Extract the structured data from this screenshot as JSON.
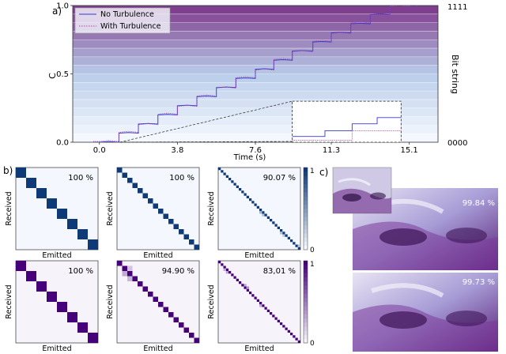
{
  "panel_labels": {
    "a": "a)",
    "b": "b)",
    "c": "c)"
  },
  "chart_data": [
    {
      "id": "panel-a",
      "type": "line",
      "title": "",
      "xlabel": "Time (s)",
      "ylabel": "C",
      "right_label": "Bit string",
      "xlim": [
        -1.3,
        16.5
      ],
      "ylim": [
        0,
        1
      ],
      "x_ticks": [
        0.0,
        3.8,
        7.6,
        11.3,
        15.1
      ],
      "x_tick_labels": [
        "0.0",
        "3.8",
        "7.6",
        "11.3",
        "15.1"
      ],
      "y_ticks": [
        0.0,
        0.5,
        1.0
      ],
      "y_tick_labels": [
        "0.0",
        "0.5",
        "1.0"
      ],
      "right_tick_labels": [
        "0000",
        "1111"
      ],
      "legend": {
        "placement": "top-left",
        "entries": [
          "No Turbulence",
          "With Turbulence"
        ]
      },
      "levels": 16,
      "series": [
        {
          "name": "No Turbulence",
          "color": "#3a3ad0",
          "style": "solid",
          "x": [
            0.0,
            0.95,
            1.9,
            2.85,
            3.8,
            4.75,
            5.7,
            6.65,
            7.6,
            8.5,
            9.4,
            10.4,
            11.3,
            12.25,
            13.2,
            14.15,
            15.1
          ],
          "values": [
            0.0,
            0.0667,
            0.1333,
            0.2,
            0.2667,
            0.3333,
            0.4,
            0.4667,
            0.5333,
            0.6,
            0.6667,
            0.7333,
            0.8,
            0.8667,
            0.9333,
            1.0,
            1.0
          ]
        },
        {
          "name": "With Turbulence",
          "color": "#b04a9c",
          "style": "dotted",
          "x": [
            0.0,
            0.95,
            1.9,
            2.85,
            3.8,
            4.75,
            5.7,
            6.65,
            7.6,
            8.5,
            9.4,
            10.4,
            11.3,
            12.25,
            13.2,
            14.15,
            15.1
          ],
          "values": [
            0.005,
            0.072,
            0.128,
            0.205,
            0.262,
            0.338,
            0.396,
            0.472,
            0.528,
            0.605,
            0.662,
            0.738,
            0.795,
            0.872,
            0.928,
            0.995,
            1.0
          ]
        }
      ],
      "inset": {
        "x_range": [
          9.4,
          14.7
        ],
        "y_range": [
          0.0,
          0.3
        ]
      }
    },
    {
      "id": "panel-b",
      "type": "heatmap",
      "ylabel": "Received",
      "xlabel": "Emitted",
      "colorbar": {
        "min_label": "0",
        "max_label": "1"
      },
      "matrices": [
        {
          "row": 0,
          "col": 0,
          "size": 8,
          "accuracy": "100 %",
          "colormap": "blue",
          "offdiag": []
        },
        {
          "row": 0,
          "col": 1,
          "size": 16,
          "accuracy": "100 %",
          "colormap": "blue",
          "offdiag": []
        },
        {
          "row": 0,
          "col": 2,
          "size": 32,
          "accuracy": "90.07 %",
          "colormap": "blue",
          "offdiag": [
            [
              17,
              16,
              0.35
            ],
            [
              18,
              17,
              0.3
            ],
            [
              25,
              24,
              0.3
            ],
            [
              26,
              25,
              0.25
            ],
            [
              30,
              31,
              0.3
            ]
          ]
        },
        {
          "row": 1,
          "col": 0,
          "size": 8,
          "accuracy": "100 %",
          "colormap": "purple",
          "offdiag": []
        },
        {
          "row": 1,
          "col": 1,
          "size": 16,
          "accuracy": "94.90 %",
          "colormap": "purple",
          "offdiag": [
            [
              2,
              1,
              0.3
            ],
            [
              3,
              2,
              0.25
            ],
            [
              1,
              2,
              0.2
            ]
          ]
        },
        {
          "row": 1,
          "col": 2,
          "size": 32,
          "accuracy": "83,01 %",
          "colormap": "purple",
          "offdiag": [
            [
              3,
              2,
              0.3
            ],
            [
              4,
              3,
              0.35
            ],
            [
              9,
              10,
              0.3
            ],
            [
              10,
              11,
              0.4
            ],
            [
              17,
              16,
              0.3
            ]
          ]
        }
      ]
    },
    {
      "id": "panel-c",
      "type": "image",
      "images": [
        {
          "role": "original"
        },
        {
          "role": "received",
          "accuracy": "99.84 %"
        },
        {
          "role": "received",
          "accuracy": "99.73 %"
        }
      ]
    }
  ]
}
